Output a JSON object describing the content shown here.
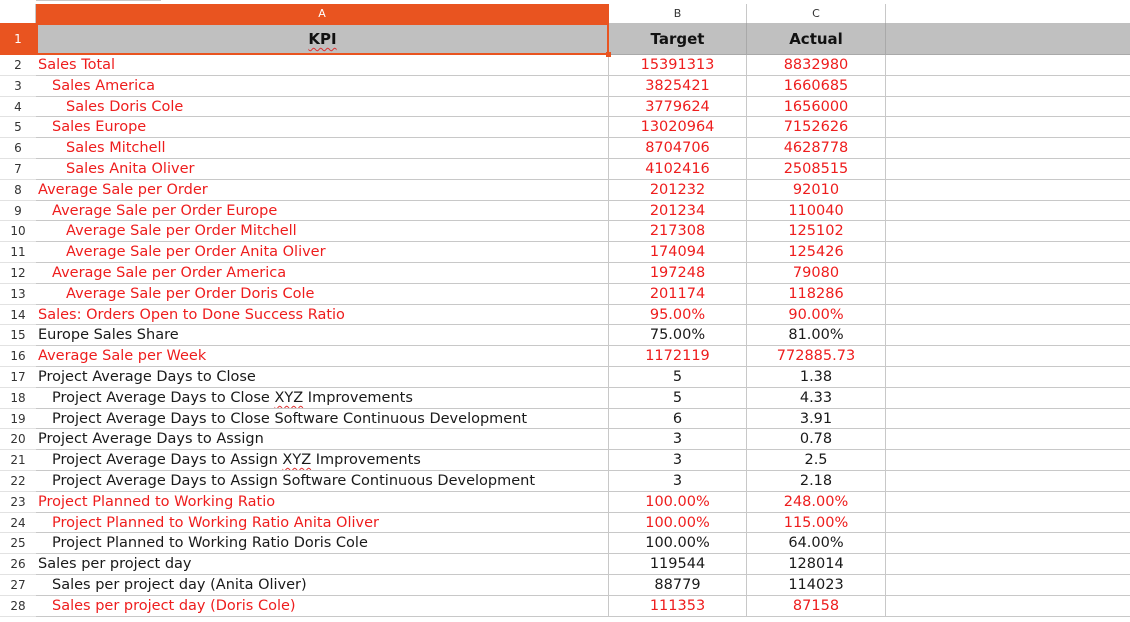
{
  "columns": {
    "a": "A",
    "b": "B",
    "c": "C"
  },
  "header_row": {
    "number": "1",
    "kpi": "KPI",
    "target": "Target",
    "actual": "Actual"
  },
  "rows": [
    {
      "num": "2",
      "kpi": "Sales Total",
      "target": "15391313",
      "actual": "8832980",
      "indent": 0,
      "color": "red"
    },
    {
      "num": "3",
      "kpi": "Sales America",
      "target": "3825421",
      "actual": "1660685",
      "indent": 1,
      "color": "red"
    },
    {
      "num": "4",
      "kpi": "Sales Doris Cole",
      "target": "3779624",
      "actual": "1656000",
      "indent": 2,
      "color": "red"
    },
    {
      "num": "5",
      "kpi": "Sales Europe",
      "target": "13020964",
      "actual": "7152626",
      "indent": 1,
      "color": "red"
    },
    {
      "num": "6",
      "kpi": "Sales Mitchell",
      "target": "8704706",
      "actual": "4628778",
      "indent": 2,
      "color": "red"
    },
    {
      "num": "7",
      "kpi": "Sales Anita Oliver",
      "target": "4102416",
      "actual": "2508515",
      "indent": 2,
      "color": "red"
    },
    {
      "num": "8",
      "kpi": "Average Sale per Order",
      "target": "201232",
      "actual": "92010",
      "indent": 0,
      "color": "red"
    },
    {
      "num": "9",
      "kpi": "Average Sale per Order Europe",
      "target": "201234",
      "actual": "110040",
      "indent": 1,
      "color": "red"
    },
    {
      "num": "10",
      "kpi": "Average Sale per Order Mitchell",
      "target": "217308",
      "actual": "125102",
      "indent": 2,
      "color": "red"
    },
    {
      "num": "11",
      "kpi": "Average Sale per Order Anita Oliver",
      "target": "174094",
      "actual": "125426",
      "indent": 2,
      "color": "red"
    },
    {
      "num": "12",
      "kpi": "Average Sale per Order America",
      "target": "197248",
      "actual": "79080",
      "indent": 1,
      "color": "red"
    },
    {
      "num": "13",
      "kpi": "Average Sale per Order Doris Cole",
      "target": "201174",
      "actual": "118286",
      "indent": 2,
      "color": "red"
    },
    {
      "num": "14",
      "kpi": "Sales: Orders Open to Done Success Ratio",
      "target": "95.00%",
      "actual": "90.00%",
      "indent": 0,
      "color": "red"
    },
    {
      "num": "15",
      "kpi": "Europe Sales Share",
      "target": "75.00%",
      "actual": "81.00%",
      "indent": 0,
      "color": "black"
    },
    {
      "num": "16",
      "kpi": "Average Sale per Week",
      "target": "1172119",
      "actual": "772885.73",
      "indent": 0,
      "color": "red"
    },
    {
      "num": "17",
      "kpi": "Project Average Days to Close",
      "target": "5",
      "actual": "1.38",
      "indent": 0,
      "color": "black"
    },
    {
      "num": "18",
      "kpi_pre": "Project Average Days to Close ",
      "kpi_sq": "XYZ",
      "kpi_post": " Improvements",
      "target": "5",
      "actual": "4.33",
      "indent": 1,
      "color": "black"
    },
    {
      "num": "19",
      "kpi": "Project Average Days to Close Software Continuous Development",
      "target": "6",
      "actual": "3.91",
      "indent": 1,
      "color": "black"
    },
    {
      "num": "20",
      "kpi": "Project Average Days to Assign",
      "target": "3",
      "actual": "0.78",
      "indent": 0,
      "color": "black"
    },
    {
      "num": "21",
      "kpi_pre": "Project Average Days to Assign ",
      "kpi_sq": "XYZ",
      "kpi_post": " Improvements",
      "target": "3",
      "actual": "2.5",
      "indent": 1,
      "color": "black"
    },
    {
      "num": "22",
      "kpi": "Project Average Days to Assign Software Continuous Development",
      "target": "3",
      "actual": "2.18",
      "indent": 1,
      "color": "black"
    },
    {
      "num": "23",
      "kpi": "Project Planned to Working Ratio",
      "target": "100.00%",
      "actual": "248.00%",
      "indent": 0,
      "color": "red"
    },
    {
      "num": "24",
      "kpi": "Project Planned to Working Ratio Anita Oliver",
      "target": "100.00%",
      "actual": "115.00%",
      "indent": 1,
      "color": "red"
    },
    {
      "num": "25",
      "kpi": "Project Planned to Working Ratio Doris Cole",
      "target": "100.00%",
      "actual": "64.00%",
      "indent": 1,
      "color": "black"
    },
    {
      "num": "26",
      "kpi": "Sales per project day",
      "target": "119544",
      "actual": "128014",
      "indent": 0,
      "color": "black"
    },
    {
      "num": "27",
      "kpi": "Sales per project day (Anita Oliver)",
      "target": "88779",
      "actual": "114023",
      "indent": 1,
      "color": "black"
    },
    {
      "num": "28",
      "kpi": "Sales per project day (Doris Cole)",
      "target": "111353",
      "actual": "87158",
      "indent": 1,
      "color": "red"
    }
  ],
  "colors": {
    "accent": "#e95420",
    "red_text": "#ee1d1d",
    "header_fill": "#c0c0c0"
  }
}
